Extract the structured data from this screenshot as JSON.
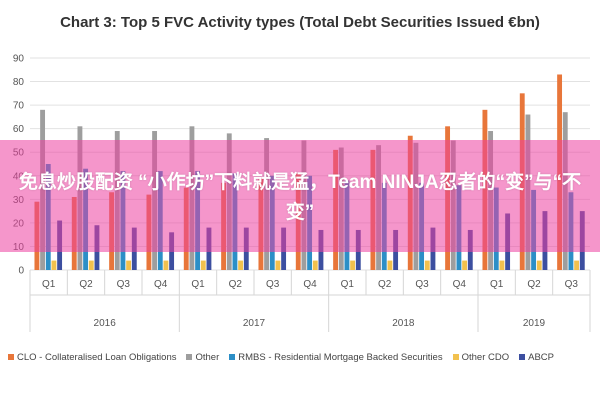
{
  "chart_data": {
    "type": "bar",
    "title": "Chart 3: Top 5 FVC Activity types (Total Debt Securities Issued €bn)",
    "xlabel": "",
    "ylabel": "",
    "ylim": [
      0,
      90
    ],
    "yticks": [
      0,
      10,
      20,
      30,
      40,
      50,
      60,
      70,
      80,
      90
    ],
    "grid": true,
    "legend_position": "bottom",
    "categories": [
      "Q1",
      "Q2",
      "Q3",
      "Q4",
      "Q1",
      "Q2",
      "Q3",
      "Q4",
      "Q1",
      "Q2",
      "Q3",
      "Q4",
      "Q1",
      "Q2",
      "Q3"
    ],
    "groups": [
      {
        "label": "2016",
        "span": 4
      },
      {
        "label": "2017",
        "span": 4
      },
      {
        "label": "2018",
        "span": 4
      },
      {
        "label": "2019",
        "span": 3
      }
    ],
    "series": [
      {
        "name": "CLO - Collateralised Loan Obligations",
        "color": "#e8763a",
        "values": [
          29,
          31,
          33,
          32,
          35,
          37,
          39,
          41,
          51,
          51,
          57,
          61,
          68,
          75,
          83
        ]
      },
      {
        "name": "Other",
        "color": "#9e9e9e",
        "values": [
          68,
          61,
          59,
          59,
          61,
          58,
          56,
          55,
          52,
          53,
          54,
          55,
          59,
          66,
          67
        ]
      },
      {
        "name": "RMBS - Residential Mortgage Backed Securities",
        "color": "#2c8fc7",
        "values": [
          45,
          43,
          42,
          42,
          42,
          41,
          40,
          40,
          38,
          37,
          37,
          36,
          35,
          34,
          33
        ]
      },
      {
        "name": "Other CDO",
        "color": "#f2c14e",
        "values": [
          4,
          4,
          4,
          4,
          4,
          4,
          4,
          4,
          4,
          4,
          4,
          4,
          4,
          4,
          4
        ]
      },
      {
        "name": "ABCP",
        "color": "#3c4fa0",
        "values": [
          21,
          19,
          18,
          16,
          18,
          18,
          18,
          17,
          17,
          17,
          18,
          17,
          24,
          25,
          25
        ]
      }
    ]
  },
  "overlay": {
    "text": "免息炒股配资 “小作坊”下料就是猛，Team NINJA忍者的“变”与“不变”"
  }
}
